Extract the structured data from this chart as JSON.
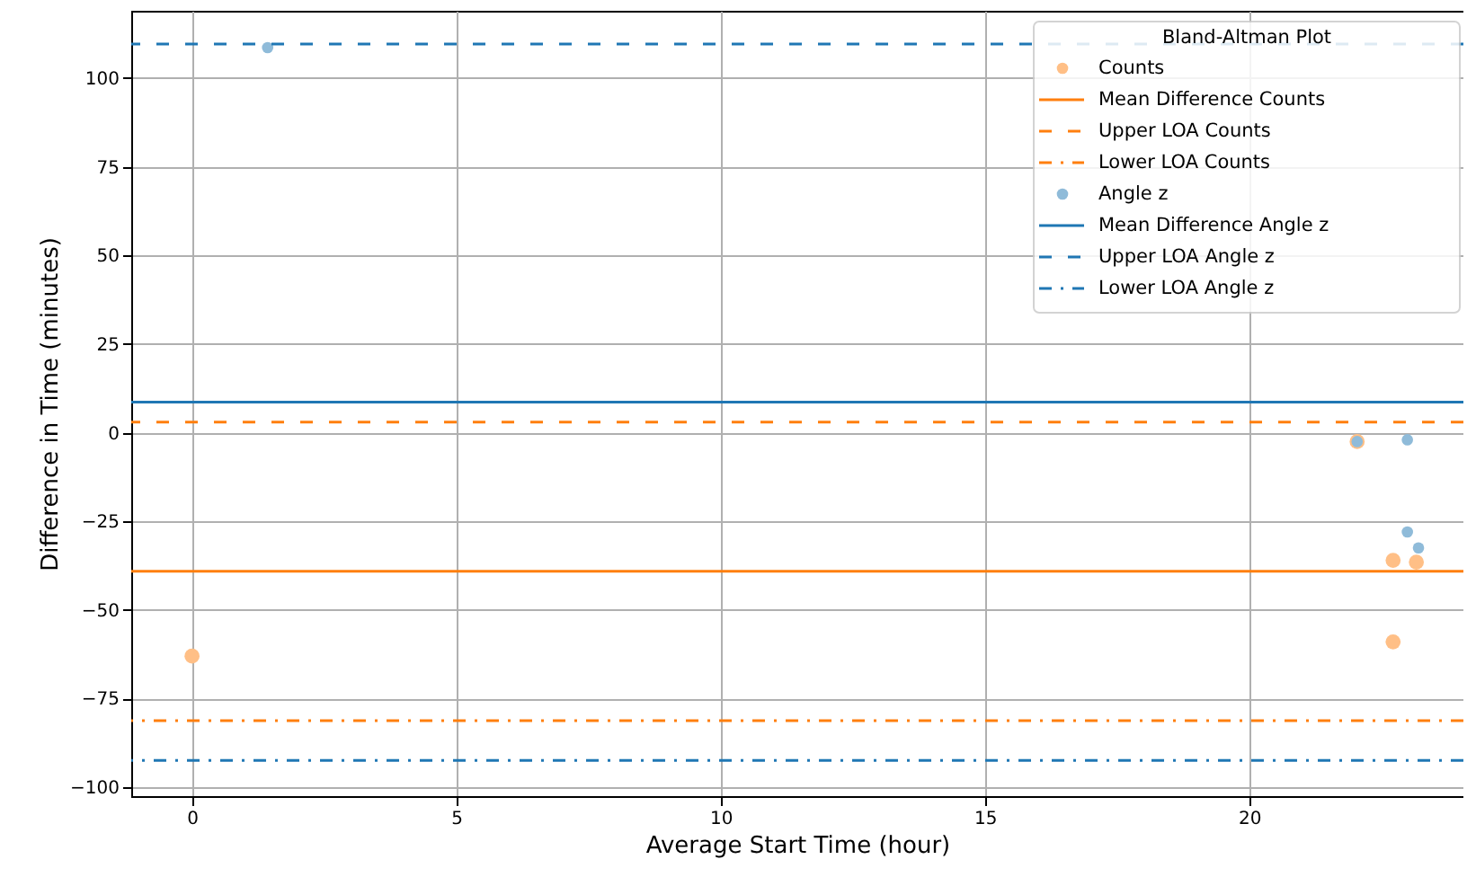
{
  "chart_data": {
    "type": "scatter",
    "xlabel": "Average Start Time (hour)",
    "ylabel": "Difference in Time (minutes)",
    "legend_title": "Bland-Altman Plot",
    "legend": "top right",
    "grid": true,
    "marker": "circle",
    "xlim": [
      -1.15,
      24.05
    ],
    "ylim": [
      -102.5,
      119
    ],
    "xticks": [
      0,
      5,
      10,
      15,
      20
    ],
    "yticks": [
      -100,
      -75,
      -50,
      -25,
      0,
      25,
      50,
      75,
      100
    ],
    "series": [
      {
        "name": "Counts",
        "color": "#ffbf86",
        "x": [
          0,
          22.04,
          22.72,
          22.72,
          23.16
        ],
        "values": [
          -63,
          -2.5,
          -59,
          -36,
          -36.5
        ]
      },
      {
        "name": "Angle z",
        "color": "#8fbbd9",
        "x": [
          1.43,
          22.04,
          22.99,
          22.99,
          23.2
        ],
        "values": [
          108.6,
          -2.5,
          -2,
          -28,
          -32.5
        ]
      }
    ],
    "ref_lines": [
      {
        "axis": "y",
        "value": -39.1,
        "label": "Mean Difference Counts",
        "color": "#ff7f0e",
        "line_style": "solid"
      },
      {
        "axis": "y",
        "value": 3,
        "label": "Upper LOA Counts",
        "color": "#ff7f0e",
        "line_style": "dashed"
      },
      {
        "axis": "y",
        "value": -81.2,
        "label": "Lower LOA Counts",
        "color": "#ff7f0e",
        "line_style": "dashdot"
      },
      {
        "axis": "y",
        "value": 8.6,
        "label": "Mean Difference Angle z",
        "color": "#1f77b4",
        "line_style": "solid"
      },
      {
        "axis": "y",
        "value": 109.6,
        "label": "Upper LOA Angle z",
        "color": "#1f77b4",
        "line_style": "dashed"
      },
      {
        "axis": "y",
        "value": -92.4,
        "label": "Lower LOA Angle z",
        "color": "#1f77b4",
        "line_style": "dashdot"
      }
    ]
  }
}
